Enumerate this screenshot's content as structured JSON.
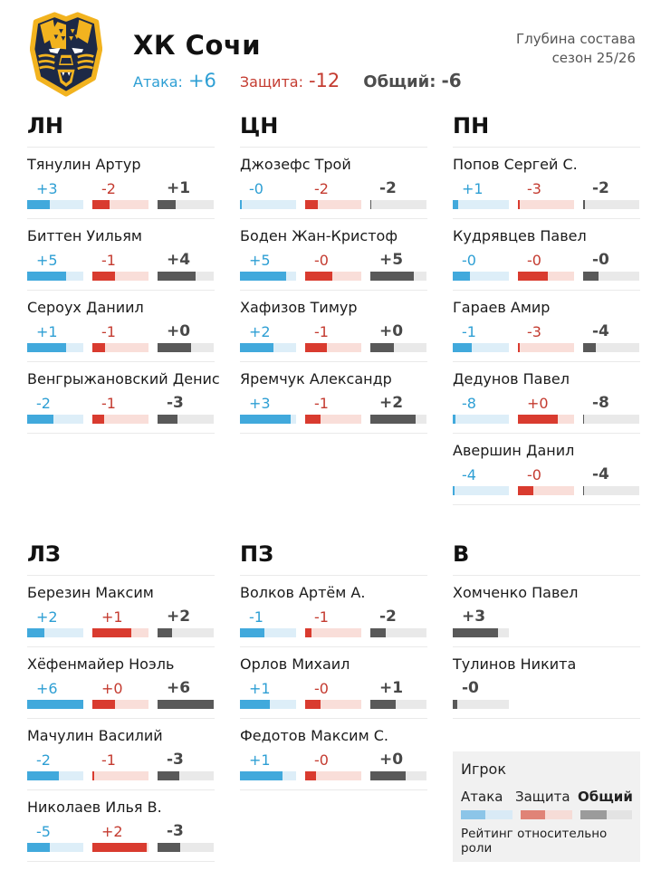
{
  "header": {
    "title": "ХК Сочи",
    "subtitle_line1": "Глубина состава",
    "subtitle_line2": "сезон 25/26",
    "team_stats": [
      {
        "label": "Атака:",
        "value": "+6",
        "type": "attack"
      },
      {
        "label": "Защита:",
        "value": "-12",
        "type": "defense"
      },
      {
        "label": "Общий:",
        "value": "-6",
        "type": "overall"
      }
    ]
  },
  "colors": {
    "attack_text": "#2e9fd4",
    "attack_fill": "#41a9dc",
    "attack_track": "#ddeef8",
    "defense_text": "#c43b30",
    "defense_fill": "#d93b2f",
    "defense_track": "#f9ded9",
    "overall_text": "#484848",
    "overall_fill": "#595959",
    "overall_track": "#e9e9e9",
    "logo_navy": "#1d2946",
    "logo_gold": "#f2b31f"
  },
  "sections": [
    {
      "columns": [
        {
          "code": "ЛН",
          "players": [
            {
              "name": "Тянулин Артур",
              "attack": {
                "value": "+3",
                "fill": 40
              },
              "defense": {
                "value": "-2",
                "fill": 30
              },
              "overall": {
                "value": "+1",
                "fill": 33
              }
            },
            {
              "name": "Биттен Уильям",
              "attack": {
                "value": "+5",
                "fill": 70
              },
              "defense": {
                "value": "-1",
                "fill": 40
              },
              "overall": {
                "value": "+4",
                "fill": 68
              }
            },
            {
              "name": "Сероух Даниил",
              "attack": {
                "value": "+1",
                "fill": 69
              },
              "defense": {
                "value": "-1",
                "fill": 22
              },
              "overall": {
                "value": "+0",
                "fill": 60
              }
            },
            {
              "name": "Венгрыжановский Денис",
              "attack": {
                "value": "-2",
                "fill": 46
              },
              "defense": {
                "value": "-1",
                "fill": 21
              },
              "overall": {
                "value": "-3",
                "fill": 35
              }
            }
          ]
        },
        {
          "code": "ЦН",
          "players": [
            {
              "name": "Джозефс Трой",
              "attack": {
                "value": "-0",
                "fill": 3
              },
              "defense": {
                "value": "-2",
                "fill": 22
              },
              "overall": {
                "value": "-2",
                "fill": 2
              }
            },
            {
              "name": "Боден Жан-Кристоф",
              "attack": {
                "value": "+5",
                "fill": 83
              },
              "defense": {
                "value": "-0",
                "fill": 48
              },
              "overall": {
                "value": "+5",
                "fill": 77
              }
            },
            {
              "name": "Хафизов Тимур",
              "attack": {
                "value": "+2",
                "fill": 60
              },
              "defense": {
                "value": "-1",
                "fill": 39
              },
              "overall": {
                "value": "+0",
                "fill": 42
              }
            },
            {
              "name": "Яремчук Александр",
              "attack": {
                "value": "+3",
                "fill": 90
              },
              "defense": {
                "value": "-1",
                "fill": 28
              },
              "overall": {
                "value": "+2",
                "fill": 81
              }
            }
          ]
        },
        {
          "code": "ПН",
          "players": [
            {
              "name": "Попов Сергей С.",
              "attack": {
                "value": "+1",
                "fill": 10
              },
              "defense": {
                "value": "-3",
                "fill": 3
              },
              "overall": {
                "value": "-2",
                "fill": 3
              }
            },
            {
              "name": "Кудрявцев Павел",
              "attack": {
                "value": "-0",
                "fill": 30
              },
              "defense": {
                "value": "-0",
                "fill": 54
              },
              "overall": {
                "value": "-0",
                "fill": 27
              }
            },
            {
              "name": "Гараев Амир",
              "attack": {
                "value": "-1",
                "fill": 34
              },
              "defense": {
                "value": "-3",
                "fill": 4
              },
              "overall": {
                "value": "-4",
                "fill": 22
              }
            },
            {
              "name": "Дедунов Павел",
              "attack": {
                "value": "-8",
                "fill": 5
              },
              "defense": {
                "value": "+0",
                "fill": 71
              },
              "overall": {
                "value": "-8",
                "fill": 2
              }
            },
            {
              "name": "Авершин Данил",
              "attack": {
                "value": "-4",
                "fill": 3
              },
              "defense": {
                "value": "-0",
                "fill": 28
              },
              "overall": {
                "value": "-4",
                "fill": 2
              }
            }
          ]
        }
      ]
    },
    {
      "columns": [
        {
          "code": "ЛЗ",
          "players": [
            {
              "name": "Березин Максим",
              "attack": {
                "value": "+2",
                "fill": 31
              },
              "defense": {
                "value": "+1",
                "fill": 70
              },
              "overall": {
                "value": "+2",
                "fill": 25
              }
            },
            {
              "name": "Хёфенмайер Ноэль",
              "attack": {
                "value": "+6",
                "fill": 100
              },
              "defense": {
                "value": "+0",
                "fill": 40
              },
              "overall": {
                "value": "+6",
                "fill": 100
              }
            },
            {
              "name": "Мачулин Василий",
              "attack": {
                "value": "-2",
                "fill": 57
              },
              "defense": {
                "value": "-1",
                "fill": 4
              },
              "overall": {
                "value": "-3",
                "fill": 38
              }
            },
            {
              "name": "Николаев Илья В.",
              "attack": {
                "value": "-5",
                "fill": 40
              },
              "defense": {
                "value": "+2",
                "fill": 96
              },
              "overall": {
                "value": "-3",
                "fill": 41
              }
            }
          ]
        },
        {
          "code": "ПЗ",
          "players": [
            {
              "name": "Волков Артём А.",
              "attack": {
                "value": "-1",
                "fill": 43
              },
              "defense": {
                "value": "-1",
                "fill": 12
              },
              "overall": {
                "value": "-2",
                "fill": 28
              }
            },
            {
              "name": "Орлов Михаил",
              "attack": {
                "value": "+1",
                "fill": 53
              },
              "defense": {
                "value": "-0",
                "fill": 27
              },
              "overall": {
                "value": "+1",
                "fill": 45
              }
            },
            {
              "name": "Федотов Максим С.",
              "attack": {
                "value": "+1",
                "fill": 75
              },
              "defense": {
                "value": "-0",
                "fill": 20
              },
              "overall": {
                "value": "+0",
                "fill": 63
              }
            }
          ]
        },
        {
          "code": "В",
          "players": [
            {
              "name": "Хомченко Павел",
              "overall": {
                "value": "+3",
                "fill": 80
              }
            },
            {
              "name": "Тулинов Никита",
              "overall": {
                "value": "-0",
                "fill": 8
              }
            }
          ]
        }
      ]
    }
  ],
  "legend": {
    "title": "Игрок",
    "items": [
      {
        "label": "Атака",
        "type": "attack",
        "fill": 47
      },
      {
        "label": "Защита",
        "type": "defense",
        "fill": 48
      },
      {
        "label": "Общий",
        "type": "overall",
        "fill": 50
      }
    ],
    "footer": "Рейтинг относительно роли"
  },
  "chart_data": {
    "type": "bar",
    "title": "ХК Сочи — Глубина состава, сезон 25/26",
    "note": "Рейтинг относительно роли",
    "team_totals": {
      "attack": 6,
      "defense": -12,
      "overall": -6
    },
    "groups": [
      {
        "position": "ЛН",
        "players": [
          {
            "name": "Тянулин Артур",
            "attack": 3,
            "defense": -2,
            "overall": 1
          },
          {
            "name": "Биттен Уильям",
            "attack": 5,
            "defense": -1,
            "overall": 4
          },
          {
            "name": "Сероух Даниил",
            "attack": 1,
            "defense": -1,
            "overall": 0
          },
          {
            "name": "Венгрыжановский Денис",
            "attack": -2,
            "defense": -1,
            "overall": -3
          }
        ]
      },
      {
        "position": "ЦН",
        "players": [
          {
            "name": "Джозефс Трой",
            "attack": 0,
            "defense": -2,
            "overall": -2
          },
          {
            "name": "Боден Жан-Кристоф",
            "attack": 5,
            "defense": 0,
            "overall": 5
          },
          {
            "name": "Хафизов Тимур",
            "attack": 2,
            "defense": -1,
            "overall": 0
          },
          {
            "name": "Яремчук Александр",
            "attack": 3,
            "defense": -1,
            "overall": 2
          }
        ]
      },
      {
        "position": "ПН",
        "players": [
          {
            "name": "Попов Сергей С.",
            "attack": 1,
            "defense": -3,
            "overall": -2
          },
          {
            "name": "Кудрявцев Павел",
            "attack": 0,
            "defense": 0,
            "overall": 0
          },
          {
            "name": "Гараев Амир",
            "attack": -1,
            "defense": -3,
            "overall": -4
          },
          {
            "name": "Дедунов Павел",
            "attack": -8,
            "defense": 0,
            "overall": -8
          },
          {
            "name": "Авершин Данил",
            "attack": -4,
            "defense": 0,
            "overall": -4
          }
        ]
      },
      {
        "position": "ЛЗ",
        "players": [
          {
            "name": "Березин Максим",
            "attack": 2,
            "defense": 1,
            "overall": 2
          },
          {
            "name": "Хёфенмайер Ноэль",
            "attack": 6,
            "defense": 0,
            "overall": 6
          },
          {
            "name": "Мачулин Василий",
            "attack": -2,
            "defense": -1,
            "overall": -3
          },
          {
            "name": "Николаев Илья В.",
            "attack": -5,
            "defense": 2,
            "overall": -3
          }
        ]
      },
      {
        "position": "ПЗ",
        "players": [
          {
            "name": "Волков Артём А.",
            "attack": -1,
            "defense": -1,
            "overall": -2
          },
          {
            "name": "Орлов Михаил",
            "attack": 1,
            "defense": 0,
            "overall": 1
          },
          {
            "name": "Федотов Максим С.",
            "attack": 1,
            "defense": 0,
            "overall": 0
          }
        ]
      },
      {
        "position": "В",
        "players": [
          {
            "name": "Хомченко Павел",
            "overall": 3
          },
          {
            "name": "Тулинов Никита",
            "overall": 0
          }
        ]
      }
    ]
  }
}
